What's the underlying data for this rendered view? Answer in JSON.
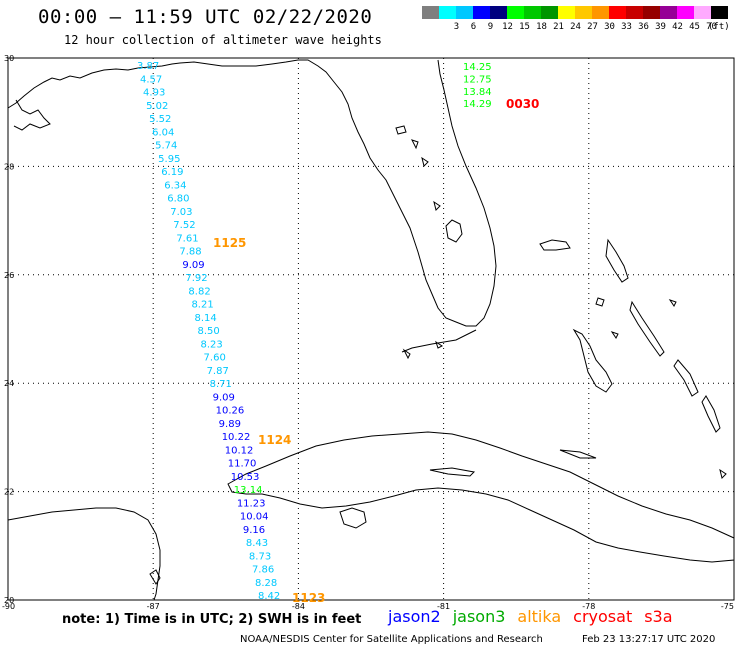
{
  "header": {
    "title": "00:00 – 11:59 UTC 02/22/2020",
    "subtitle": "12 hour collection of altimeter wave heights"
  },
  "scale": {
    "unit": "(ft)",
    "bins": [
      {
        "label": "",
        "color": "#7f7f7f"
      },
      {
        "label": "3",
        "color": "#00ffff"
      },
      {
        "label": "6",
        "color": "#00c8ff"
      },
      {
        "label": "9",
        "color": "#0000ff"
      },
      {
        "label": "12",
        "color": "#00007f"
      },
      {
        "label": "15",
        "color": "#00ff00"
      },
      {
        "label": "18",
        "color": "#00c800"
      },
      {
        "label": "21",
        "color": "#009600"
      },
      {
        "label": "24",
        "color": "#ffff00"
      },
      {
        "label": "27",
        "color": "#ffc800"
      },
      {
        "label": "30",
        "color": "#ff9600"
      },
      {
        "label": "33",
        "color": "#ff0000"
      },
      {
        "label": "36",
        "color": "#c80000"
      },
      {
        "label": "39",
        "color": "#960000"
      },
      {
        "label": "42",
        "color": "#960096"
      },
      {
        "label": "45",
        "color": "#ff00ff"
      },
      {
        "label": "70",
        "color": "#ffaaff"
      },
      {
        "label": "",
        "color": "#000000"
      }
    ]
  },
  "axes": {
    "lat_labels": [
      "30",
      "28",
      "26",
      "24",
      "22",
      "20"
    ],
    "lon_labels": [
      "-90",
      "-87",
      "-84",
      "-81",
      "-78",
      "-75"
    ]
  },
  "tracks": [
    {
      "id": "western",
      "points": [
        {
          "v": "3.87",
          "c": "#00c8ff"
        },
        {
          "v": "4.57",
          "c": "#00c8ff"
        },
        {
          "v": "4.93",
          "c": "#00c8ff"
        },
        {
          "v": "5.02",
          "c": "#00c8ff"
        },
        {
          "v": "5.52",
          "c": "#00c8ff"
        },
        {
          "v": "6.04",
          "c": "#00c8ff"
        },
        {
          "v": "5.74",
          "c": "#00c8ff"
        },
        {
          "v": "5.95",
          "c": "#00c8ff"
        },
        {
          "v": "6.19",
          "c": "#00c8ff"
        },
        {
          "v": "6.34",
          "c": "#00c8ff"
        },
        {
          "v": "6.80",
          "c": "#00c8ff"
        },
        {
          "v": "7.03",
          "c": "#00c8ff"
        },
        {
          "v": "7.52",
          "c": "#00c8ff"
        },
        {
          "v": "7.61",
          "c": "#00c8ff"
        },
        {
          "v": "7.88",
          "c": "#00c8ff"
        },
        {
          "v": "9.09",
          "c": "#0000ff"
        },
        {
          "v": "7.92",
          "c": "#00c8ff"
        },
        {
          "v": "8.82",
          "c": "#00c8ff"
        },
        {
          "v": "8.21",
          "c": "#00c8ff"
        },
        {
          "v": "8.14",
          "c": "#00c8ff"
        },
        {
          "v": "8.50",
          "c": "#00c8ff"
        },
        {
          "v": "8.23",
          "c": "#00c8ff"
        },
        {
          "v": "7.60",
          "c": "#00c8ff"
        },
        {
          "v": "7.87",
          "c": "#00c8ff"
        },
        {
          "v": "8.71",
          "c": "#00c8ff"
        },
        {
          "v": "9.09",
          "c": "#0000ff"
        },
        {
          "v": "10.26",
          "c": "#0000ff"
        },
        {
          "v": "9.89",
          "c": "#0000ff"
        },
        {
          "v": "10.22",
          "c": "#0000ff"
        },
        {
          "v": "10.12",
          "c": "#0000ff"
        },
        {
          "v": "11.70",
          "c": "#0000ff"
        },
        {
          "v": "10.53",
          "c": "#0000ff"
        },
        {
          "v": "13.14",
          "c": "#00ff00"
        },
        {
          "v": "11.23",
          "c": "#0000ff"
        },
        {
          "v": "10.04",
          "c": "#0000ff"
        },
        {
          "v": "9.16",
          "c": "#0000ff"
        },
        {
          "v": "8.43",
          "c": "#00c8ff"
        },
        {
          "v": "8.73",
          "c": "#00c8ff"
        },
        {
          "v": "7.86",
          "c": "#00c8ff"
        },
        {
          "v": "8.28",
          "c": "#00c8ff"
        },
        {
          "v": "8.42",
          "c": "#00c8ff"
        }
      ]
    },
    {
      "id": "eastern",
      "points": [
        {
          "v": "14.25",
          "c": "#00ff00"
        },
        {
          "v": "12.75",
          "c": "#00ff00"
        },
        {
          "v": "13.84",
          "c": "#00ff00"
        },
        {
          "v": "14.29",
          "c": "#00ff00"
        }
      ]
    }
  ],
  "times": [
    {
      "label": "1125",
      "color": "#ff9600"
    },
    {
      "label": "1124",
      "color": "#ff9600"
    },
    {
      "label": "1123",
      "color": "#ff9600"
    },
    {
      "label": "0030",
      "color": "#ff0000"
    }
  ],
  "footer": {
    "note": "note:  1) Time is in UTC;  2) SWH is in feet",
    "satellites": [
      {
        "label": "jason2",
        "color": "#0000ff"
      },
      {
        "label": "jason3",
        "color": "#00aa00"
      },
      {
        "label": "altika",
        "color": "#ff9600"
      },
      {
        "label": "cryosat",
        "color": "#ff0000"
      },
      {
        "label": "s3a",
        "color": "#ff0000"
      }
    ],
    "credit": "NOAA/NESDIS Center for Satellite Applications and Research",
    "timestamp": "Feb 23 13:27:17 UTC 2020"
  }
}
